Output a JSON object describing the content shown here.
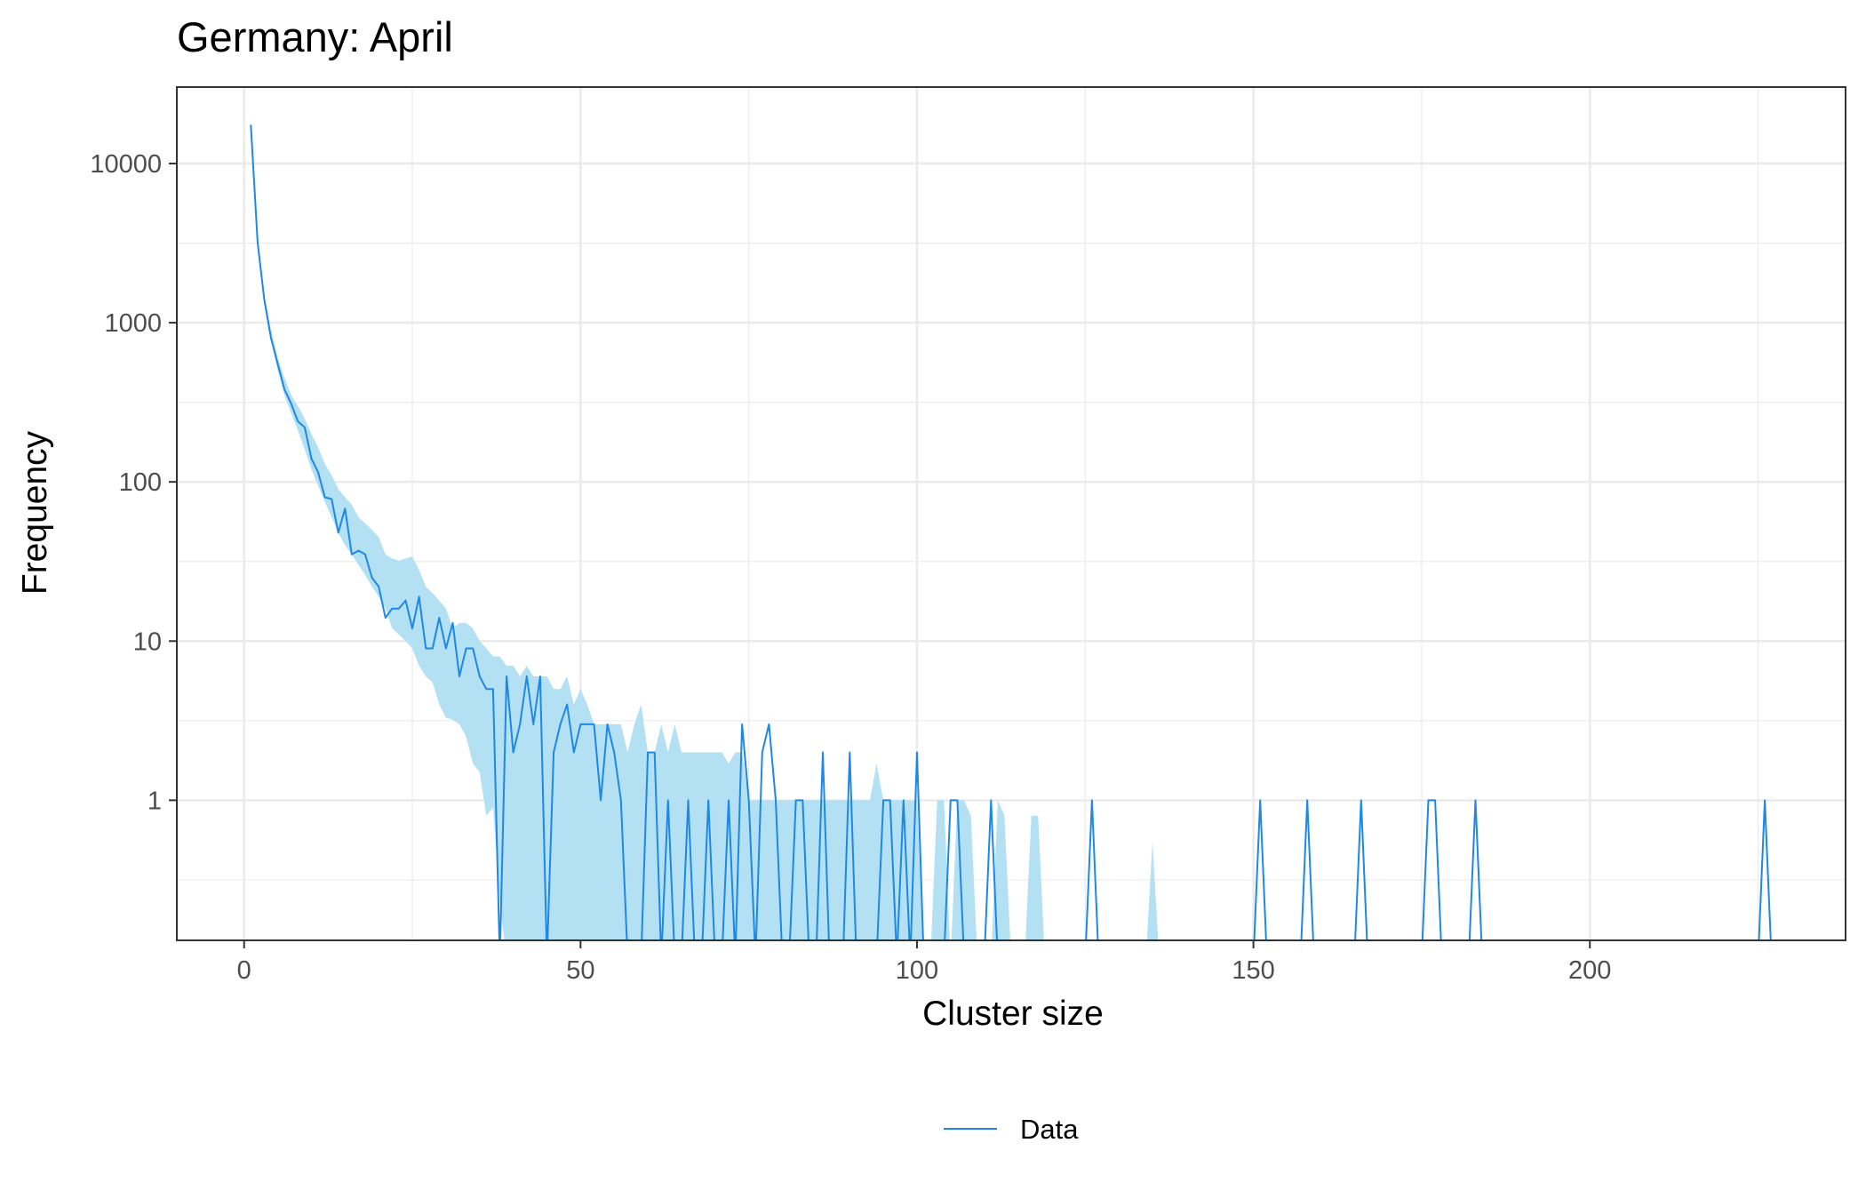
{
  "chart_data": {
    "type": "line",
    "title": "Germany: April",
    "xlabel": "Cluster size",
    "ylabel": "Frequency",
    "x_scale": "linear",
    "y_scale": "log",
    "xlim": [
      -10,
      238
    ],
    "ylim_log10": [
      -0.88,
      4.48
    ],
    "x_ticks": [
      0,
      50,
      100,
      150,
      200
    ],
    "x_tick_labels": [
      "0",
      "50",
      "100",
      "150",
      "200"
    ],
    "y_ticks": [
      1,
      10,
      100,
      1000,
      10000
    ],
    "y_tick_labels": [
      "1",
      "10",
      "100",
      "1000",
      "10000"
    ],
    "grid": true,
    "legend_position": "bottom",
    "colors": {
      "line": "#1E88E5",
      "band": "#B3E0F2",
      "grid": "#EBEBEB",
      "panel_border": "#333333"
    },
    "series": [
      {
        "name": "Data",
        "color": "#1E88E5",
        "points": [
          [
            1,
            17500
          ],
          [
            2,
            3200
          ],
          [
            3,
            1400
          ],
          [
            4,
            800
          ],
          [
            5,
            550
          ],
          [
            6,
            380
          ],
          [
            7,
            310
          ],
          [
            8,
            240
          ],
          [
            9,
            220
          ],
          [
            10,
            140
          ],
          [
            11,
            115
          ],
          [
            12,
            80
          ],
          [
            13,
            78
          ],
          [
            14,
            48
          ],
          [
            15,
            68
          ],
          [
            16,
            35
          ],
          [
            17,
            37
          ],
          [
            18,
            35
          ],
          [
            19,
            25
          ],
          [
            20,
            22
          ],
          [
            21,
            14
          ],
          [
            22,
            16
          ],
          [
            23,
            16
          ],
          [
            24,
            18
          ],
          [
            25,
            12
          ],
          [
            26,
            19
          ],
          [
            27,
            9
          ],
          [
            28,
            9
          ],
          [
            29,
            14
          ],
          [
            30,
            9
          ],
          [
            31,
            13
          ],
          [
            32,
            6
          ],
          [
            33,
            9
          ],
          [
            34,
            9
          ],
          [
            35,
            6
          ],
          [
            36,
            5
          ],
          [
            37,
            5
          ],
          [
            38,
            0.1
          ],
          [
            39,
            6
          ],
          [
            40,
            2
          ],
          [
            41,
            3
          ],
          [
            42,
            6
          ],
          [
            43,
            3
          ],
          [
            44,
            6
          ],
          [
            45,
            0.1
          ],
          [
            46,
            2
          ],
          [
            47,
            3
          ],
          [
            48,
            4
          ],
          [
            49,
            2
          ],
          [
            50,
            3
          ],
          [
            51,
            3
          ],
          [
            52,
            3
          ],
          [
            53,
            1
          ],
          [
            54,
            3
          ],
          [
            55,
            2
          ],
          [
            56,
            1
          ],
          [
            57,
            0.1
          ],
          [
            58,
            0.1
          ],
          [
            59,
            0.1
          ],
          [
            60,
            2
          ],
          [
            61,
            2
          ],
          [
            62,
            0.1
          ],
          [
            63,
            1
          ],
          [
            64,
            0.1
          ],
          [
            65,
            0.1
          ],
          [
            66,
            1
          ],
          [
            67,
            0.1
          ],
          [
            68,
            0.1
          ],
          [
            69,
            1
          ],
          [
            70,
            0.1
          ],
          [
            71,
            0.1
          ],
          [
            72,
            1
          ],
          [
            73,
            0.1
          ],
          [
            74,
            3
          ],
          [
            75,
            1
          ],
          [
            76,
            0.1
          ],
          [
            77,
            2
          ],
          [
            78,
            3
          ],
          [
            79,
            1
          ],
          [
            80,
            0.1
          ],
          [
            81,
            0.1
          ],
          [
            82,
            1
          ],
          [
            83,
            1
          ],
          [
            84,
            0.1
          ],
          [
            85,
            0.1
          ],
          [
            86,
            2
          ],
          [
            87,
            0.1
          ],
          [
            88,
            0.1
          ],
          [
            89,
            0.1
          ],
          [
            90,
            2
          ],
          [
            91,
            0.1
          ],
          [
            92,
            0.1
          ],
          [
            93,
            0.1
          ],
          [
            94,
            0.1
          ],
          [
            95,
            1
          ],
          [
            96,
            1
          ],
          [
            97,
            0.1
          ],
          [
            98,
            1
          ],
          [
            99,
            0.1
          ],
          [
            100,
            2
          ],
          [
            101,
            0.1
          ],
          [
            102,
            0.1
          ],
          [
            103,
            0.1
          ],
          [
            104,
            0.1
          ],
          [
            105,
            1
          ],
          [
            106,
            1
          ],
          [
            107,
            0.1
          ],
          [
            108,
            0.1
          ],
          [
            109,
            0.1
          ],
          [
            110,
            0.1
          ],
          [
            111,
            1
          ],
          [
            112,
            0.1
          ],
          [
            125,
            0.1
          ],
          [
            126,
            1
          ],
          [
            127,
            0.1
          ],
          [
            150,
            0.1
          ],
          [
            151,
            1
          ],
          [
            152,
            0.1
          ],
          [
            157,
            0.1
          ],
          [
            158,
            1
          ],
          [
            159,
            0.1
          ],
          [
            165,
            0.1
          ],
          [
            166,
            1
          ],
          [
            167,
            0.1
          ],
          [
            175,
            0.1
          ],
          [
            176,
            1
          ],
          [
            177,
            1
          ],
          [
            178,
            0.1
          ],
          [
            182,
            0.1
          ],
          [
            183,
            1
          ],
          [
            184,
            0.1
          ],
          [
            225,
            0.1
          ],
          [
            226,
            1
          ],
          [
            227,
            0.1
          ]
        ]
      }
    ],
    "band": {
      "upper": [
        [
          1,
          17500
        ],
        [
          2,
          3300
        ],
        [
          3,
          1500
        ],
        [
          4,
          900
        ],
        [
          5,
          600
        ],
        [
          6,
          450
        ],
        [
          7,
          350
        ],
        [
          8,
          300
        ],
        [
          9,
          250
        ],
        [
          10,
          200
        ],
        [
          11,
          165
        ],
        [
          12,
          130
        ],
        [
          13,
          110
        ],
        [
          14,
          90
        ],
        [
          15,
          80
        ],
        [
          16,
          72
        ],
        [
          17,
          60
        ],
        [
          18,
          55
        ],
        [
          19,
          50
        ],
        [
          20,
          45
        ],
        [
          21,
          35
        ],
        [
          22,
          33
        ],
        [
          23,
          32
        ],
        [
          24,
          33
        ],
        [
          25,
          34
        ],
        [
          26,
          28
        ],
        [
          27,
          22
        ],
        [
          28,
          20
        ],
        [
          29,
          18
        ],
        [
          30,
          16
        ],
        [
          31,
          12
        ],
        [
          32,
          13
        ],
        [
          33,
          13
        ],
        [
          34,
          12
        ],
        [
          35,
          10
        ],
        [
          36,
          9
        ],
        [
          37,
          8
        ],
        [
          38,
          8
        ],
        [
          39,
          7
        ],
        [
          40,
          7
        ],
        [
          41,
          6
        ],
        [
          42,
          7
        ],
        [
          43,
          6
        ],
        [
          44,
          6
        ],
        [
          45,
          6
        ],
        [
          46,
          5
        ],
        [
          47,
          5
        ],
        [
          48,
          6
        ],
        [
          49,
          4
        ],
        [
          50,
          5
        ],
        [
          51,
          4
        ],
        [
          52,
          3
        ],
        [
          53,
          3
        ],
        [
          54,
          3
        ],
        [
          55,
          3
        ],
        [
          56,
          3
        ],
        [
          57,
          2
        ],
        [
          58,
          3
        ],
        [
          59,
          4
        ],
        [
          60,
          2
        ],
        [
          61,
          2
        ],
        [
          62,
          3
        ],
        [
          63,
          2
        ],
        [
          64,
          3
        ],
        [
          65,
          2
        ],
        [
          66,
          2
        ],
        [
          67,
          2
        ],
        [
          68,
          2
        ],
        [
          69,
          2
        ],
        [
          70,
          2
        ],
        [
          71,
          2
        ],
        [
          72,
          1.7
        ],
        [
          73,
          2
        ],
        [
          74,
          2
        ],
        [
          75,
          1
        ],
        [
          76,
          1
        ],
        [
          77,
          1
        ],
        [
          78,
          1
        ],
        [
          79,
          1
        ],
        [
          80,
          1
        ],
        [
          81,
          1
        ],
        [
          82,
          1
        ],
        [
          83,
          1
        ],
        [
          84,
          1
        ],
        [
          85,
          1
        ],
        [
          86,
          1
        ],
        [
          87,
          1
        ],
        [
          88,
          1
        ],
        [
          89,
          1
        ],
        [
          90,
          1
        ],
        [
          91,
          1
        ],
        [
          92,
          1
        ],
        [
          93,
          1
        ],
        [
          94,
          1.7
        ],
        [
          95,
          1
        ],
        [
          96,
          1
        ],
        [
          97,
          1
        ],
        [
          98,
          1
        ],
        [
          99,
          1
        ],
        [
          100,
          1
        ],
        [
          101,
          0.1
        ],
        [
          102,
          0.1
        ],
        [
          103,
          1
        ],
        [
          104,
          1
        ],
        [
          105,
          0.1
        ],
        [
          106,
          1
        ],
        [
          107,
          1
        ],
        [
          108,
          0.8
        ],
        [
          109,
          0.1
        ],
        [
          110,
          0.1
        ],
        [
          111,
          0.1
        ],
        [
          112,
          1
        ],
        [
          113,
          0.8
        ],
        [
          114,
          0.1
        ],
        [
          116,
          0.1
        ],
        [
          117,
          0.8
        ],
        [
          118,
          0.8
        ],
        [
          119,
          0.1
        ],
        [
          134,
          0.1
        ],
        [
          135,
          0.55
        ],
        [
          136,
          0.1
        ]
      ],
      "lower": [
        [
          1,
          17000
        ],
        [
          2,
          3100
        ],
        [
          3,
          1300
        ],
        [
          4,
          780
        ],
        [
          5,
          500
        ],
        [
          6,
          350
        ],
        [
          7,
          270
        ],
        [
          8,
          210
        ],
        [
          9,
          160
        ],
        [
          10,
          120
        ],
        [
          11,
          95
        ],
        [
          12,
          75
        ],
        [
          13,
          60
        ],
        [
          14,
          48
        ],
        [
          15,
          40
        ],
        [
          16,
          35
        ],
        [
          17,
          30
        ],
        [
          18,
          26
        ],
        [
          19,
          22
        ],
        [
          20,
          19
        ],
        [
          21,
          16
        ],
        [
          22,
          12
        ],
        [
          23,
          11
        ],
        [
          24,
          10
        ],
        [
          25,
          9
        ],
        [
          26,
          7
        ],
        [
          27,
          6
        ],
        [
          28,
          5.5
        ],
        [
          29,
          4
        ],
        [
          30,
          3.3
        ],
        [
          31,
          3.2
        ],
        [
          32,
          3
        ],
        [
          33,
          2.5
        ],
        [
          34,
          1.7
        ],
        [
          35,
          1.5
        ],
        [
          36,
          0.8
        ],
        [
          37,
          0.9
        ],
        [
          38,
          0.23
        ],
        [
          39,
          0.1
        ],
        [
          40,
          0.1
        ]
      ]
    }
  },
  "legend": {
    "label": "Data"
  }
}
